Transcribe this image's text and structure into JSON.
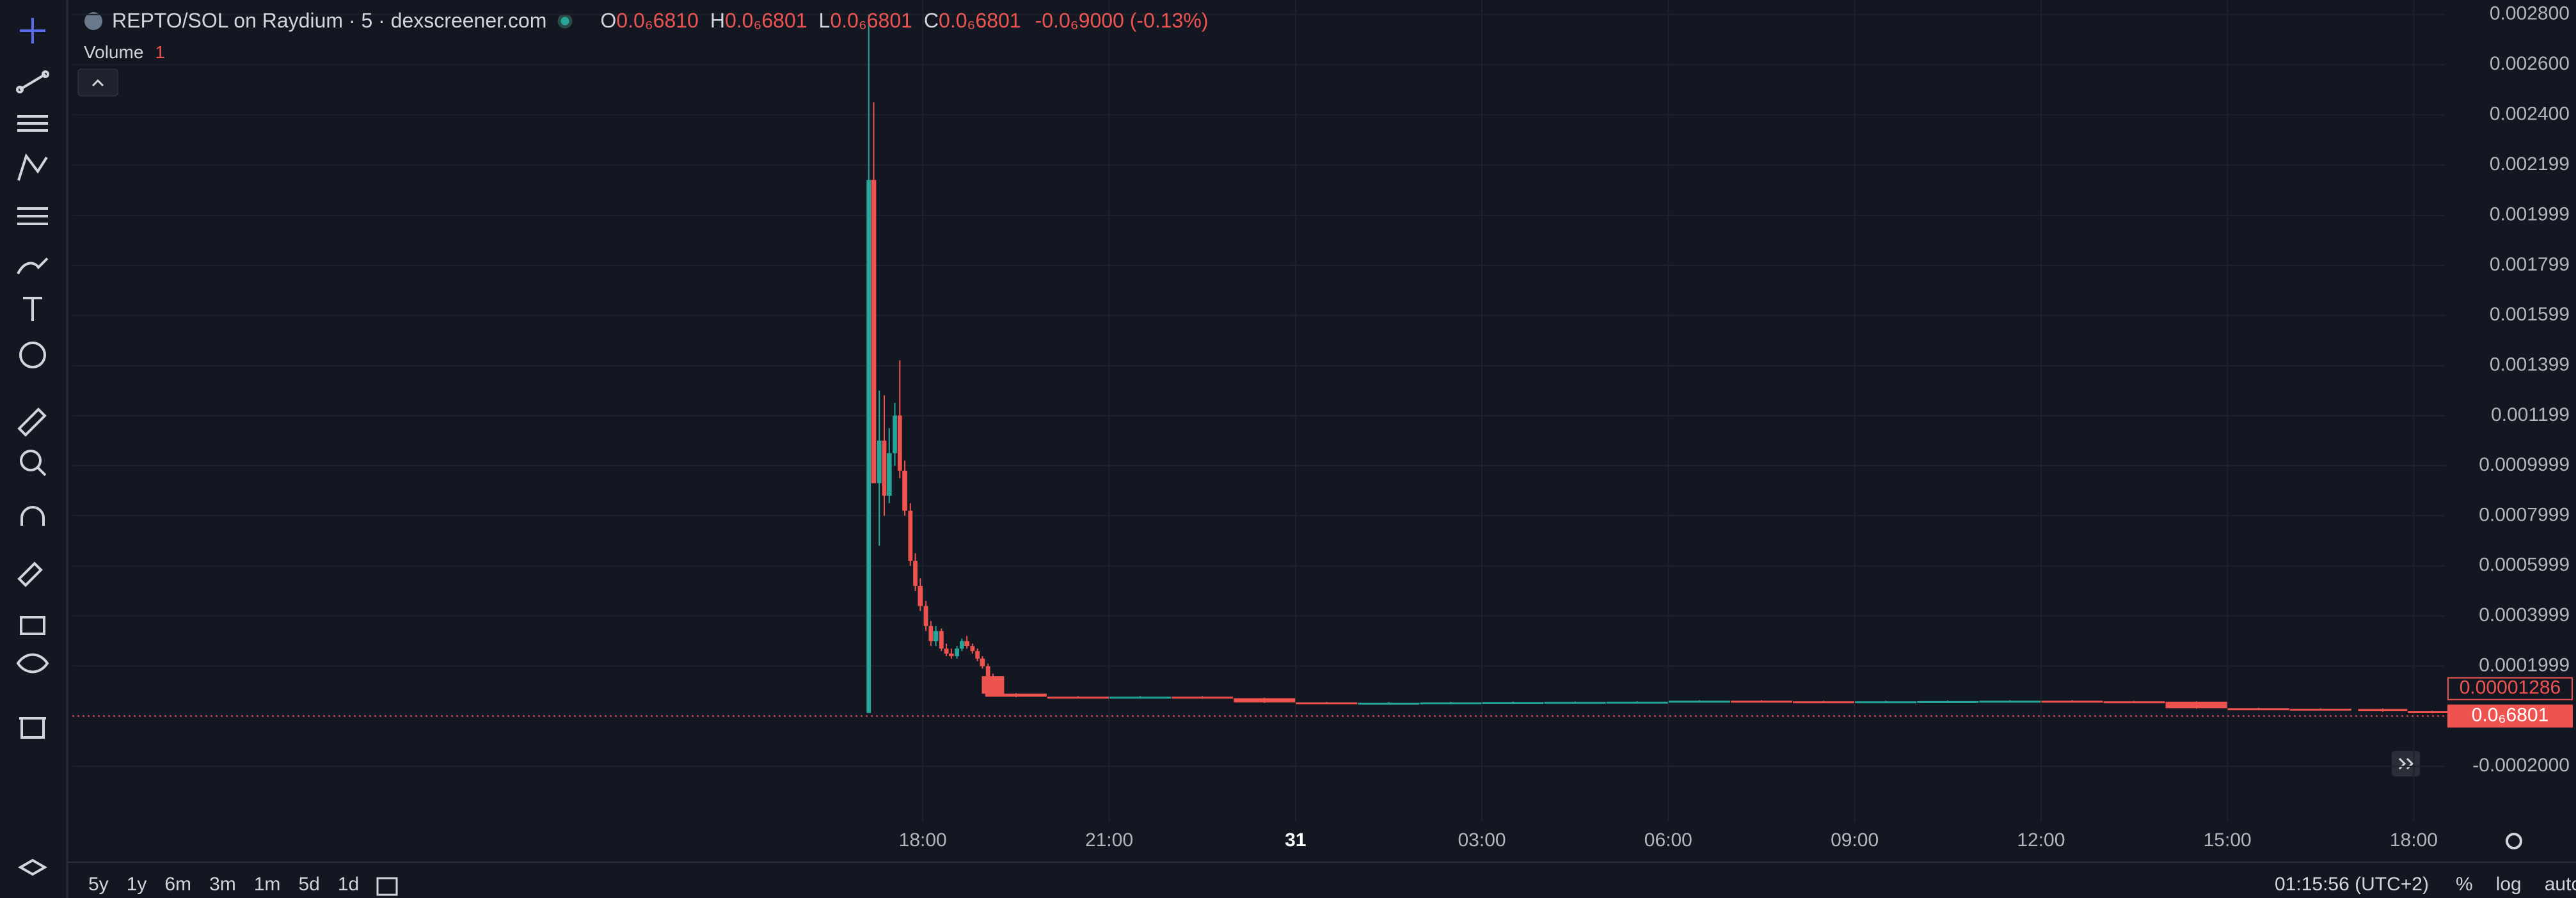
{
  "header": {
    "title": "REPTO/SOL on Raydium · 5 · dexscreener.com",
    "ohlc": [
      {
        "key": "O",
        "value": "0.0₆6810"
      },
      {
        "key": "H",
        "value": "0.0₆6801"
      },
      {
        "key": "L",
        "value": "0.0₆6801"
      },
      {
        "key": "C",
        "value": "0.0₆6801"
      }
    ],
    "change": "-0.0₆9000 (-0.13%)",
    "volume_label": "Volume",
    "volume_value": "1"
  },
  "chart_data": {
    "type": "candlestick",
    "grid": true,
    "up_color": "#26a69a",
    "down_color": "#ef5350",
    "xlim": [
      4.31,
      42.5
    ],
    "xticks": [
      {
        "value": 18,
        "label": "18:00"
      },
      {
        "value": 21,
        "label": "21:00"
      },
      {
        "value": 24,
        "label": "31"
      },
      {
        "value": 27,
        "label": "03:00"
      },
      {
        "value": 30,
        "label": "06:00"
      },
      {
        "value": 33,
        "label": "09:00"
      },
      {
        "value": 36,
        "label": "12:00"
      },
      {
        "value": 39,
        "label": "15:00"
      },
      {
        "value": 42,
        "label": "18:00"
      }
    ],
    "ylim": [
      -0.000419,
      0.002858
    ],
    "yticks": [
      {
        "value": 0.0028,
        "label": "0.002800"
      },
      {
        "value": 0.0026,
        "label": "0.002600"
      },
      {
        "value": 0.0024,
        "label": "0.002400"
      },
      {
        "value": 0.002199,
        "label": "0.002199"
      },
      {
        "value": 0.001999,
        "label": "0.001999"
      },
      {
        "value": 0.001799,
        "label": "0.001799"
      },
      {
        "value": 0.001599,
        "label": "0.001599"
      },
      {
        "value": 0.001399,
        "label": "0.001399"
      },
      {
        "value": 0.001199,
        "label": "0.001199"
      },
      {
        "value": 0.0009999,
        "label": "0.0009999"
      },
      {
        "value": 0.0007999,
        "label": "0.0007999"
      },
      {
        "value": 0.0005999,
        "label": "0.0005999"
      },
      {
        "value": 0.0003999,
        "label": "0.0003999"
      },
      {
        "value": 0.0001999,
        "label": "0.0001999"
      },
      {
        "value": -0.0002,
        "label": "-0.0002000"
      }
    ],
    "x": [
      17.13,
      17.21,
      17.3,
      17.38,
      17.46,
      17.55,
      17.63,
      17.71,
      17.8,
      17.88,
      17.96,
      18.05,
      18.13,
      18.21,
      18.3,
      18.38,
      18.46,
      18.55,
      18.63,
      18.71,
      18.8,
      18.88,
      18.96,
      19.05,
      19.13,
      19.5,
      20.5,
      21.5,
      22.5,
      23.5,
      24.5,
      25.5,
      26.5,
      27.5,
      28.5,
      29.5,
      30.5,
      31.5,
      32.5,
      33.5,
      34.5,
      35.5,
      36.5,
      37.5,
      38.5,
      39.5,
      40.5,
      41.5,
      42.3
    ],
    "open": [
      1.3e-05,
      0.00214,
      0.00093,
      0.0011,
      0.00088,
      0.00105,
      0.0012,
      0.00098,
      0.00082,
      0.00062,
      0.00052,
      0.00044,
      0.00036,
      0.0003,
      0.00034,
      0.00027,
      0.00025,
      0.00024,
      0.00027,
      0.0003,
      0.00028,
      0.00026,
      0.00023,
      0.0002,
      0.00016,
      9e-05,
      7.8e-05,
      7.5e-05,
      7.8e-05,
      7.2e-05,
      5.5e-05,
      5.3e-05,
      5.4e-05,
      5.5e-05,
      5.6e-05,
      5.7e-05,
      5.8e-05,
      6.2e-05,
      6e-05,
      5.9e-05,
      6e-05,
      6.1e-05,
      6.2e-05,
      6e-05,
      5.8e-05,
      3.2e-05,
      3e-05,
      2.9e-05,
      2e-05
    ],
    "high": [
      0.0028,
      0.00245,
      0.0013,
      0.00128,
      0.00115,
      0.00125,
      0.00142,
      0.00102,
      0.00085,
      0.00065,
      0.00055,
      0.00046,
      0.00038,
      0.00036,
      0.00035,
      0.00029,
      0.00027,
      0.00028,
      0.00031,
      0.00032,
      0.00029,
      0.00027,
      0.00024,
      0.00021,
      0.00017,
      9.2e-05,
      8e-05,
      8e-05,
      8e-05,
      7.4e-05,
      5.7e-05,
      5.6e-05,
      5.7e-05,
      5.8e-05,
      5.9e-05,
      6e-05,
      6.4e-05,
      6.4e-05,
      6.2e-05,
      6.2e-05,
      6.3e-05,
      6.4e-05,
      6.4e-05,
      6.2e-05,
      6e-05,
      3.4e-05,
      3.2e-05,
      3.1e-05,
      2.2e-05
    ],
    "low": [
      1.3e-05,
      0.00095,
      0.00068,
      0.0008,
      0.00085,
      0.001,
      0.00095,
      0.0008,
      0.0006,
      0.0005,
      0.00042,
      0.00034,
      0.00028,
      0.00028,
      0.00026,
      0.00024,
      0.00023,
      0.00023,
      0.00026,
      0.00027,
      0.00025,
      0.00022,
      0.00019,
      0.00015,
      8.5e-05,
      7.6e-05,
      7.3e-05,
      7.3e-05,
      7e-05,
      5.3e-05,
      5.1e-05,
      5.1e-05,
      5.2e-05,
      5.3e-05,
      5.4e-05,
      5.5e-05,
      5.6e-05,
      5.8e-05,
      5.7e-05,
      5.7e-05,
      5.8e-05,
      5.9e-05,
      5.8e-05,
      5.6e-05,
      3e-05,
      2.8e-05,
      2.7e-05,
      1.8e-05,
      1.1e-05
    ],
    "close": [
      0.00214,
      0.00093,
      0.0011,
      0.00088,
      0.00105,
      0.0012,
      0.00098,
      0.00082,
      0.00062,
      0.00052,
      0.00044,
      0.00036,
      0.0003,
      0.00034,
      0.00027,
      0.00025,
      0.00024,
      0.00027,
      0.0003,
      0.00028,
      0.00026,
      0.00023,
      0.0002,
      0.00016,
      9e-05,
      7.8e-05,
      7.5e-05,
      7.8e-05,
      7.2e-05,
      5.5e-05,
      5.3e-05,
      5.4e-05,
      5.5e-05,
      5.6e-05,
      5.7e-05,
      5.8e-05,
      6.2e-05,
      6e-05,
      5.9e-05,
      6e-05,
      6.1e-05,
      6.2e-05,
      6e-05,
      5.8e-05,
      3.2e-05,
      3e-05,
      2.9e-05,
      2e-05,
      1.28e-05
    ],
    "price_labels": [
      {
        "value": 1.286e-05,
        "label": "0.00001286"
      },
      {
        "value": 6.801e-07,
        "label": "0.0₆6801"
      }
    ]
  },
  "footer": {
    "ranges": [
      "5y",
      "1y",
      "6m",
      "3m",
      "1m",
      "5d",
      "1d"
    ],
    "clock": "01:15:56 (UTC+2)",
    "options": [
      "%",
      "log",
      "auto"
    ]
  }
}
